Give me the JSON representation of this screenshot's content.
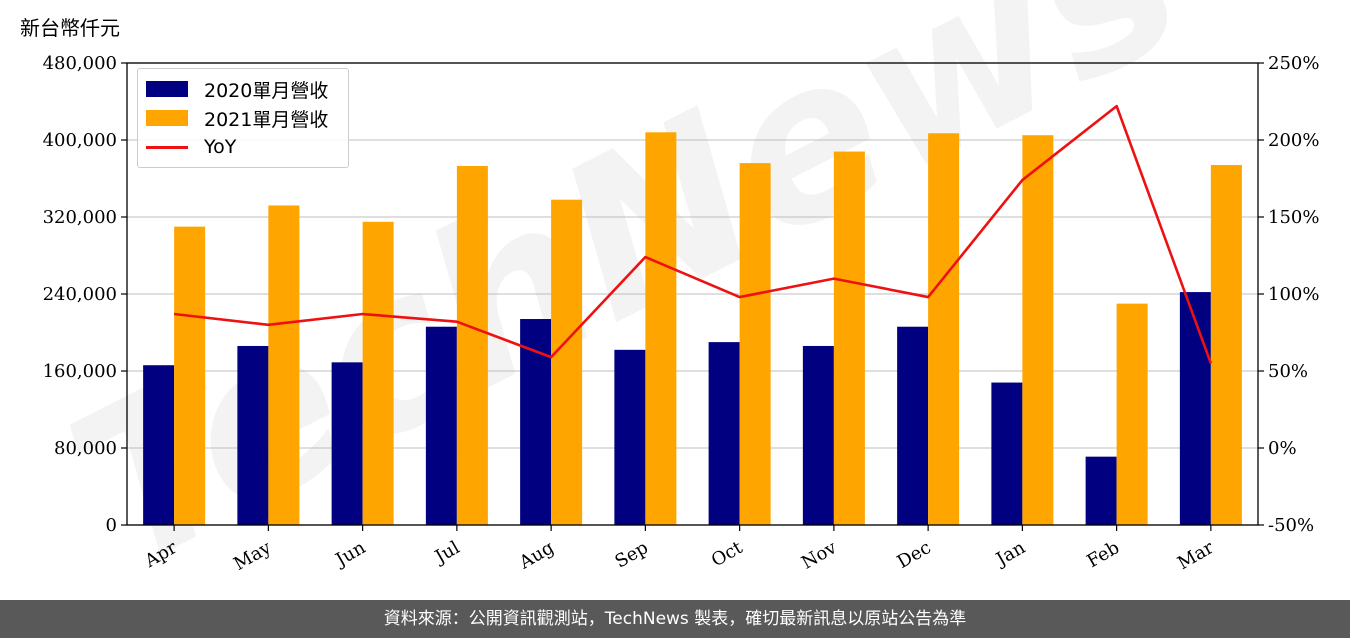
{
  "unit_label": "新台幣仟元",
  "footer_text": "資料來源：公開資訊觀測站，TechNews 製表，確切最新訊息以原站公告為準",
  "watermark": "TechNews",
  "colors": {
    "series_2020": "#000080",
    "series_2021": "#ffa500",
    "yoy": "#ee1111",
    "grid": "#cccccc",
    "footer_bg": "#595959"
  },
  "chart_data": {
    "type": "bar",
    "categories": [
      "Apr",
      "May",
      "Jun",
      "Jul",
      "Aug",
      "Sep",
      "Oct",
      "Nov",
      "Dec",
      "Jan",
      "Feb",
      "Mar"
    ],
    "series": [
      {
        "name": "2020單月營收",
        "axis": "left",
        "values": [
          166000,
          186000,
          169000,
          206000,
          214000,
          182000,
          190000,
          186000,
          206000,
          148000,
          71000,
          242000
        ]
      },
      {
        "name": "2021單月營收",
        "axis": "left",
        "values": [
          310000,
          332000,
          315000,
          373000,
          338000,
          408000,
          376000,
          388000,
          407000,
          405000,
          230000,
          374000
        ]
      },
      {
        "name": "YoY",
        "type": "line",
        "axis": "right",
        "values": [
          87,
          80,
          87,
          82,
          59,
          124,
          98,
          110,
          98,
          174,
          222,
          55
        ]
      }
    ],
    "y_left": {
      "ylim": [
        0,
        480000
      ],
      "ticks": [
        "0",
        "80,000",
        "160,000",
        "240,000",
        "320,000",
        "400,000",
        "480,000"
      ]
    },
    "y_right": {
      "ylim": [
        -50,
        250
      ],
      "ticks": [
        "-50%",
        "0%",
        "50%",
        "100%",
        "150%",
        "200%",
        "250%"
      ]
    },
    "grid": "horizontal",
    "legend": "top-left"
  }
}
